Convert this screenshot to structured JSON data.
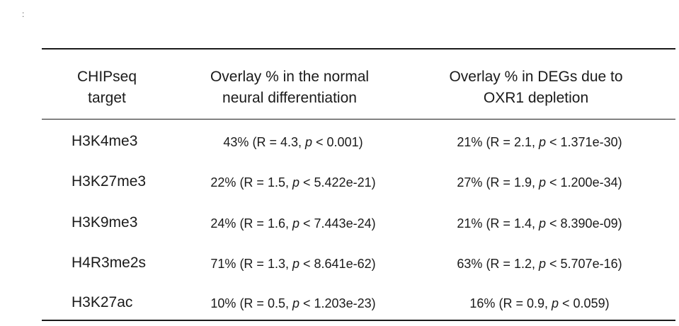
{
  "corner_mark": ":",
  "table": {
    "headers": {
      "col1": [
        "CHIPseq",
        "target"
      ],
      "col2": [
        "Overlay % in the normal",
        "neural differentiation"
      ],
      "col3": [
        "Overlay % in DEGs due to",
        "OXR1 depletion"
      ]
    },
    "rows": [
      {
        "target": "H3K4me3",
        "normal": {
          "pct": "43%",
          "r": "(R = 4.3,",
          "p_label": "p",
          "p_val": "< 0.001)"
        },
        "degs": {
          "pct": "21%",
          "r": "(R = 2.1,",
          "p_label": "p",
          "p_val": "< 1.371e-30)"
        }
      },
      {
        "target": "H3K27me3",
        "normal": {
          "pct": "22%",
          "r": "(R = 1.5,",
          "p_label": "p",
          "p_val": "< 5.422e-21)"
        },
        "degs": {
          "pct": "27%",
          "r": "(R = 1.9,",
          "p_label": "p",
          "p_val": "< 1.200e-34)"
        }
      },
      {
        "target": "H3K9me3",
        "normal": {
          "pct": "24%",
          "r": "(R = 1.6,",
          "p_label": "p",
          "p_val": "< 7.443e-24)"
        },
        "degs": {
          "pct": "21%",
          "r": "(R = 1.4,",
          "p_label": "p",
          "p_val": "< 8.390e-09)"
        }
      },
      {
        "target": "H4R3me2s",
        "normal": {
          "pct": "71%",
          "r": "(R = 1.3,",
          "p_label": "p",
          "p_val": "< 8.641e-62)"
        },
        "degs": {
          "pct": "63%",
          "r": "(R = 1.2,",
          "p_label": "p",
          "p_val": "< 5.707e-16)"
        }
      },
      {
        "target": "H3K27ac",
        "normal": {
          "pct": "10%",
          "r": "(R = 0.5,",
          "p_label": "p",
          "p_val": "< 1.203e-23)"
        },
        "degs": {
          "pct": "16%",
          "r": "(R = 0.9,",
          "p_label": "p",
          "p_val": "< 0.059)"
        }
      }
    ]
  }
}
